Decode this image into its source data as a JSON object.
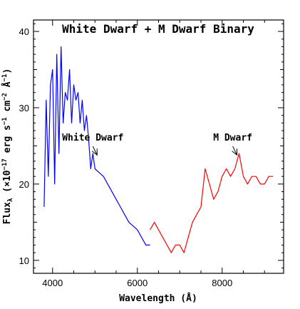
{
  "chart_data": {
    "type": "line",
    "title": "White Dwarf + M Dwarf Binary",
    "xlabel": "Wavelength (Å)",
    "ylabel": "Flux",
    "ylabel_sub": "λ",
    "ylabel_rest": " (×10",
    "ylabel_exp": "−17",
    "ylabel_units": " erg s",
    "ylabel_units_exp1": "−1",
    "ylabel_units_mid": " cm",
    "ylabel_units_exp2": "−2",
    "ylabel_units_end": " Å",
    "ylabel_units_exp3": "−1",
    "ylabel_close": ")",
    "xlim": [
      3550,
      9450
    ],
    "ylim": [
      8.3,
      41.5
    ],
    "xticks": [
      4000,
      6000,
      8000
    ],
    "yticks": [
      10,
      20,
      30,
      40
    ],
    "grid": false,
    "series": [
      {
        "color": "#0000ff",
        "x": [
          3800,
          3850,
          3900,
          3950,
          4000,
          4050,
          4100,
          4150,
          4200,
          4250,
          4300,
          4350,
          4400,
          4450,
          4500,
          4550,
          4600,
          4650,
          4700,
          4750,
          4800,
          4850,
          4900,
          4950,
          5000,
          5100,
          5200,
          5300,
          5400,
          5500,
          5600,
          5700,
          5800,
          5900,
          6000,
          6100,
          6200,
          6300
        ],
        "y": [
          17,
          31,
          21,
          33,
          35,
          20,
          37,
          24,
          38,
          28,
          32,
          31,
          35,
          28,
          33,
          31,
          32,
          28,
          31,
          27,
          29,
          26,
          22,
          24,
          22,
          21.5,
          21,
          20,
          19,
          18,
          17,
          16,
          15,
          14.5,
          14,
          13,
          12,
          12
        ]
      },
      {
        "color": "#ff0000",
        "x": [
          6300,
          6400,
          6500,
          6600,
          6700,
          6800,
          6900,
          7000,
          7100,
          7200,
          7300,
          7400,
          7500,
          7600,
          7700,
          7800,
          7900,
          8000,
          8100,
          8200,
          8300,
          8400,
          8500,
          8600,
          8700,
          8800,
          8900,
          9000,
          9100,
          9200
        ],
        "y": [
          14,
          15,
          14,
          13,
          12,
          11,
          12,
          12,
          11,
          13,
          15,
          16,
          17,
          22,
          20,
          18,
          19,
          21,
          22,
          21,
          22,
          24,
          21,
          20,
          21,
          21,
          20,
          20,
          21,
          21
        ]
      }
    ],
    "annotations": [
      {
        "text": "White Dwarf",
        "x": 4950,
        "y": 25.7,
        "arrow_to_x": 5050,
        "arrow_to_y": 23.8
      },
      {
        "text": "M Dwarf",
        "x": 8250,
        "y": 25.7,
        "arrow_to_x": 8350,
        "arrow_to_y": 23.8
      }
    ]
  }
}
